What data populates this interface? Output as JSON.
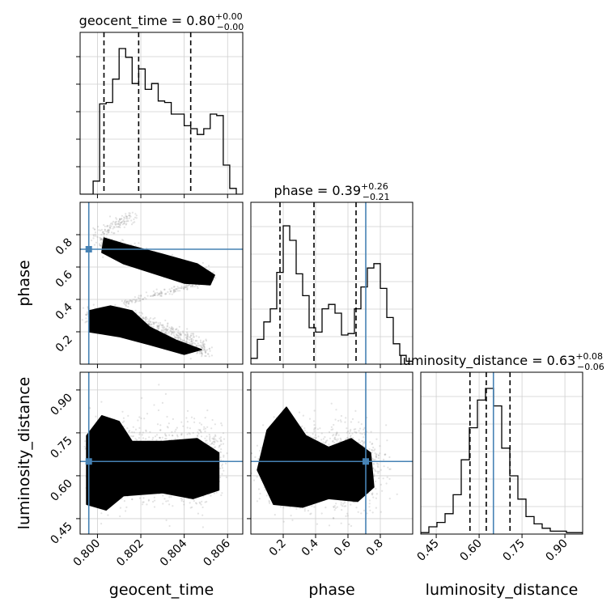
{
  "chart_data": {
    "type": "corner",
    "truth_color": "#4682b4",
    "truths": {
      "geocent_time": 0.7996,
      "phase": 0.71,
      "luminosity_distance": 0.65
    },
    "parameters": [
      {
        "name": "geocent_time",
        "xlabel": "geocent_time",
        "title_main": "geocent_time = 0.80",
        "title_sup": "+0.00",
        "title_sub": "−0.00",
        "range": [
          0.7992,
          0.8067
        ],
        "ticks": [
          0.8,
          0.802,
          0.804,
          0.806
        ],
        "tick_labels": [
          "0.800",
          "0.802",
          "0.804",
          "0.806"
        ],
        "quantiles": [
          0.8003,
          0.8019,
          0.8043
        ],
        "hist": [
          0,
          0,
          0.09,
          0.62,
          0.63,
          0.79,
          1.0,
          0.94,
          0.76,
          0.86,
          0.72,
          0.76,
          0.64,
          0.63,
          0.55,
          0.55,
          0.47,
          0.45,
          0.41,
          0.45,
          0.55,
          0.54,
          0.2,
          0.04,
          0.0
        ]
      },
      {
        "name": "phase",
        "xlabel": "phase",
        "ylabel": "phase",
        "title_main": "phase = 0.39",
        "title_sup": "+0.26",
        "title_sub": "−0.21",
        "range": [
          0.0,
          1.0
        ],
        "ticks": [
          0.2,
          0.4,
          0.6,
          0.8
        ],
        "tick_labels": [
          "0.2",
          "0.4",
          "0.6",
          "0.8"
        ],
        "quantiles": [
          0.18,
          0.39,
          0.65
        ],
        "hist": [
          0.04,
          0.17,
          0.29,
          0.38,
          0.63,
          0.95,
          0.85,
          0.62,
          0.47,
          0.25,
          0.22,
          0.38,
          0.41,
          0.35,
          0.2,
          0.21,
          0.38,
          0.53,
          0.66,
          0.69,
          0.52,
          0.32,
          0.14,
          0.06,
          0.02
        ]
      },
      {
        "name": "luminosity_distance",
        "xlabel": "luminosity_distance",
        "ylabel": "luminosity_distance",
        "title_main": "luminosity_distance = 0.63",
        "title_sup": "+0.08",
        "title_sub": "−0.06",
        "range": [
          0.396,
          0.962
        ],
        "ticks": [
          0.45,
          0.6,
          0.75,
          0.9
        ],
        "tick_labels": [
          "0.45",
          "0.60",
          "0.75",
          "0.90"
        ],
        "quantiles": [
          0.568,
          0.625,
          0.708
        ],
        "hist": [
          0.01,
          0.05,
          0.08,
          0.14,
          0.27,
          0.51,
          0.73,
          0.92,
          1.0,
          0.88,
          0.59,
          0.4,
          0.24,
          0.12,
          0.07,
          0.04,
          0.02,
          0.02,
          0.01,
          0.01
        ]
      }
    ]
  }
}
